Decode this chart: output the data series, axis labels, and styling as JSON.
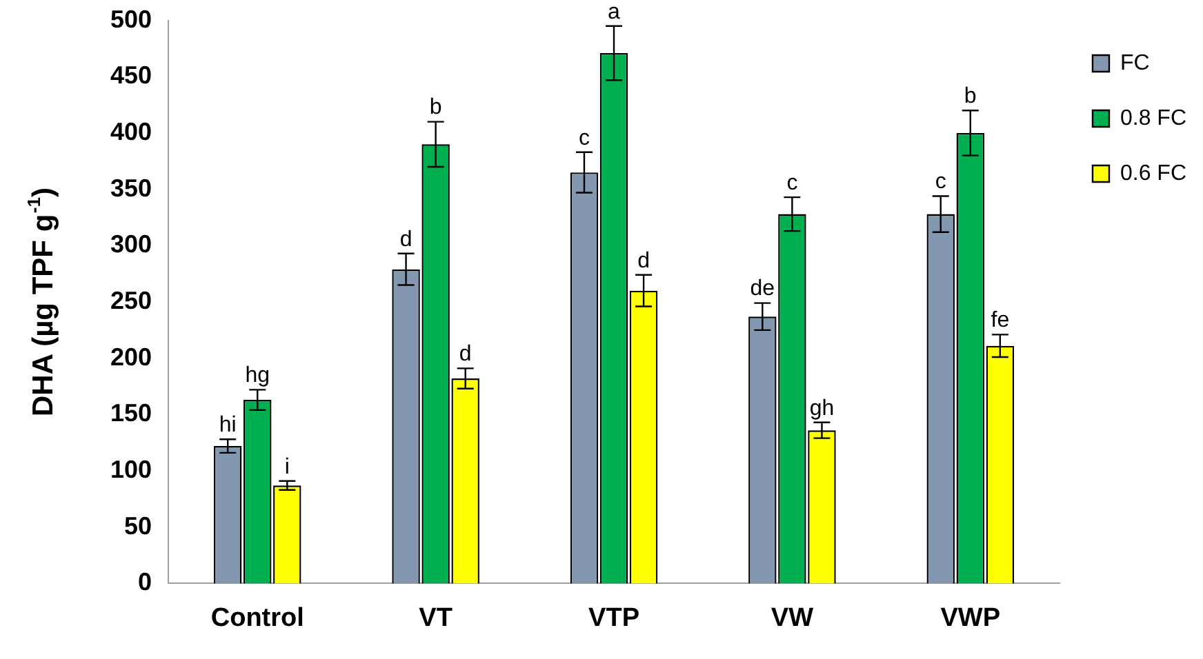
{
  "chart_data": {
    "type": "bar",
    "ylabel": "DHA (µg TPF g$^{-1}$)",
    "categories": [
      "Control",
      "VT",
      "VTP",
      "VW",
      "VWP"
    ],
    "series": [
      {
        "name": "FC",
        "color": "#8497b0",
        "values": [
          122,
          279,
          365,
          237,
          328
        ],
        "errors": [
          6,
          14,
          18,
          12,
          16
        ],
        "value_labels": [
          "hi",
          "d",
          "c",
          "de",
          "c"
        ]
      },
      {
        "name": "0.8 FC",
        "color": "#00b050",
        "values": [
          163,
          390,
          471,
          328,
          400
        ],
        "errors": [
          9,
          20,
          24,
          15,
          20
        ],
        "value_labels": [
          "hg",
          "b",
          "a",
          "c",
          "b"
        ]
      },
      {
        "name": "0.6 FC",
        "color": "#ffff00",
        "values": [
          87,
          182,
          260,
          136,
          211
        ],
        "errors": [
          4,
          9,
          14,
          7,
          10
        ],
        "value_labels": [
          "i",
          "d",
          "d",
          "gh",
          "fe"
        ]
      }
    ],
    "ylim": [
      0,
      500
    ],
    "yticks": [
      0,
      50,
      100,
      150,
      200,
      250,
      300,
      350,
      400,
      450,
      500
    ],
    "grid": false,
    "legend": "top right"
  }
}
